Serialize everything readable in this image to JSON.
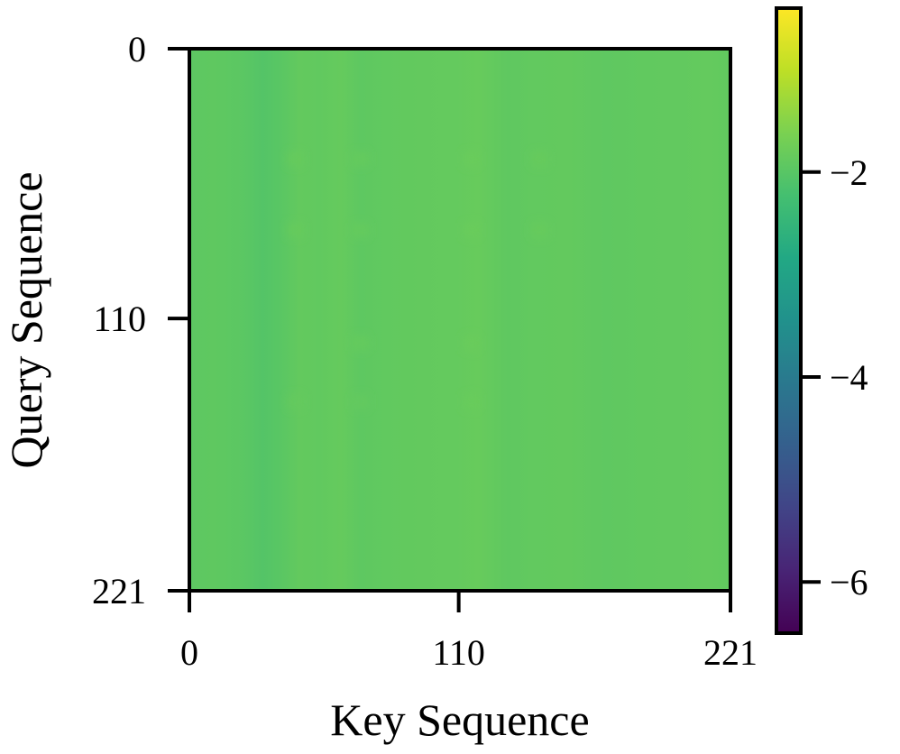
{
  "chart_data": {
    "type": "heatmap",
    "title": "",
    "xlabel": "Key Sequence",
    "ylabel": "Query Sequence",
    "x_range": [
      0,
      221
    ],
    "y_range": [
      0,
      221
    ],
    "x_ticks": [
      0,
      110,
      221
    ],
    "y_ticks": [
      0,
      110,
      221
    ],
    "colormap": "viridis",
    "color_range": [
      -6.5,
      -0.4
    ],
    "colorbar_ticks": [
      {
        "value": -2,
        "label": "−2"
      },
      {
        "value": -4,
        "label": "−4"
      },
      {
        "value": -6,
        "label": "−6"
      }
    ],
    "base_value": -1.9,
    "column_values": [
      {
        "x": 0,
        "value": -1.95
      },
      {
        "x": 10,
        "value": -1.92
      },
      {
        "x": 22,
        "value": -1.97
      },
      {
        "x": 30,
        "value": -2.05
      },
      {
        "x": 36,
        "value": -2.0
      },
      {
        "x": 45,
        "value": -1.88
      },
      {
        "x": 53,
        "value": -1.9
      },
      {
        "x": 62,
        "value": -1.86
      },
      {
        "x": 70,
        "value": -1.94
      },
      {
        "x": 80,
        "value": -1.9
      },
      {
        "x": 95,
        "value": -1.88
      },
      {
        "x": 108,
        "value": -1.87
      },
      {
        "x": 118,
        "value": -1.84
      },
      {
        "x": 130,
        "value": -1.92
      },
      {
        "x": 140,
        "value": -1.89
      },
      {
        "x": 155,
        "value": -1.88
      },
      {
        "x": 170,
        "value": -1.93
      },
      {
        "x": 185,
        "value": -1.9
      },
      {
        "x": 200,
        "value": -1.89
      },
      {
        "x": 212,
        "value": -1.87
      },
      {
        "x": 221,
        "value": -1.9
      }
    ],
    "highlights": [
      {
        "x": 43,
        "y": 45,
        "value": -1.8
      },
      {
        "x": 70,
        "y": 45,
        "value": -1.8
      },
      {
        "x": 115,
        "y": 45,
        "value": -1.78
      },
      {
        "x": 143,
        "y": 45,
        "value": -1.8
      },
      {
        "x": 43,
        "y": 74,
        "value": -1.8
      },
      {
        "x": 70,
        "y": 74,
        "value": -1.8
      },
      {
        "x": 115,
        "y": 74,
        "value": -1.78
      },
      {
        "x": 143,
        "y": 74,
        "value": -1.8
      },
      {
        "x": 70,
        "y": 120,
        "value": -1.8
      },
      {
        "x": 115,
        "y": 120,
        "value": -1.78
      },
      {
        "x": 43,
        "y": 144,
        "value": -1.82
      },
      {
        "x": 70,
        "y": 144,
        "value": -1.82
      },
      {
        "x": 115,
        "y": 144,
        "value": -1.8
      }
    ]
  }
}
